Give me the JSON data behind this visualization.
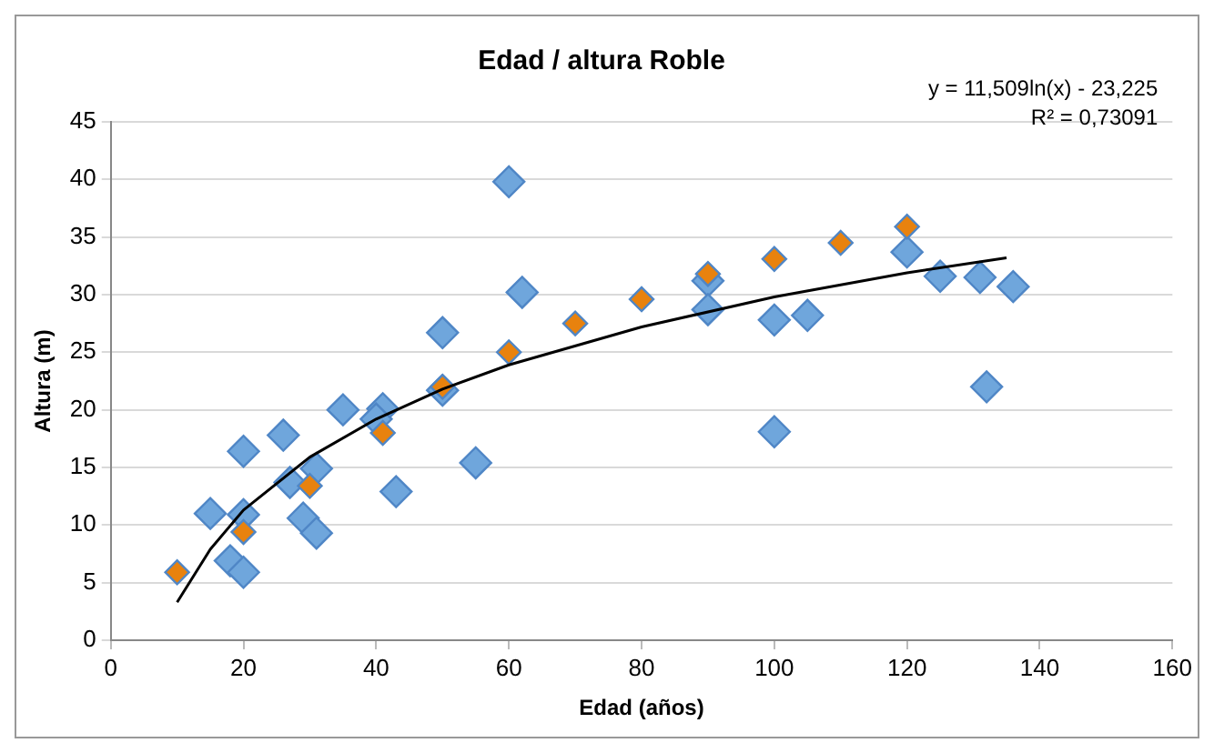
{
  "chart_data": {
    "type": "scatter",
    "title": "Edad / altura Roble",
    "xlabel": "Edad (años)",
    "ylabel": "Altura (m)",
    "annotations": [
      "y = 11,509ln(x) - 23,225",
      "R² = 0,73091"
    ],
    "xlim": [
      0,
      160
    ],
    "xticks": [
      0,
      20,
      40,
      60,
      80,
      100,
      120,
      140,
      160
    ],
    "ylim": [
      0,
      45
    ],
    "yticks": [
      0,
      5,
      10,
      15,
      20,
      25,
      30,
      35,
      40,
      45
    ],
    "grid": "y",
    "legend": false,
    "marker": "diamond",
    "series": [
      {
        "color": "#6fa6dc",
        "x": [
          15,
          20,
          26,
          18,
          20,
          20,
          27,
          31,
          29,
          31,
          35,
          41,
          40,
          43,
          50,
          50,
          55,
          60,
          62,
          90,
          90,
          100,
          105,
          100,
          120,
          125,
          131,
          132,
          136
        ],
        "values": [
          11,
          16.4,
          17.8,
          6.9,
          5.9,
          10.9,
          13.7,
          14.9,
          10.6,
          9.3,
          20,
          20.1,
          19.2,
          12.9,
          26.7,
          21.7,
          15.4,
          39.8,
          30.2,
          31.2,
          28.7,
          27.8,
          28.2,
          18.1,
          33.7,
          31.6,
          31.5,
          22,
          30.7
        ]
      },
      {
        "color": "#e8820e",
        "x": [
          10,
          20,
          30,
          41,
          50,
          60,
          70,
          80,
          90,
          100,
          110,
          120
        ],
        "values": [
          5.9,
          9.4,
          13.4,
          18,
          22,
          25,
          27.5,
          29.6,
          31.8,
          33.1,
          34.5,
          35.9
        ]
      },
      {
        "type": "line",
        "color": "#000000",
        "marker": "none",
        "x": [
          10,
          15,
          20,
          30,
          40,
          50,
          60,
          80,
          100,
          120,
          135
        ],
        "values": [
          3.3,
          7.9,
          11.3,
          15.9,
          19.2,
          21.8,
          23.9,
          27.2,
          29.8,
          31.9,
          33.2
        ]
      }
    ]
  }
}
